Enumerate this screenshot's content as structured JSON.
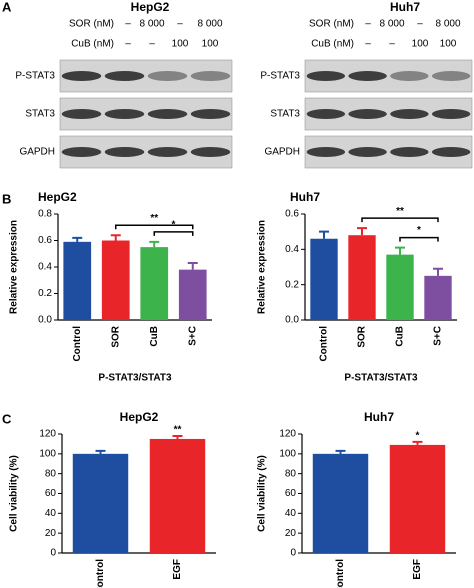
{
  "panel_labels": [
    "A",
    "B",
    "C"
  ],
  "blots": [
    {
      "title": "HepG2",
      "conditions": [
        {
          "label": "SOR (nM)",
          "values": [
            "–",
            "8 000",
            "–",
            "8 000"
          ]
        },
        {
          "label": "CuB (nM)",
          "values": [
            "–",
            "–",
            "100",
            "100"
          ]
        }
      ],
      "bands": [
        "P-STAT3",
        "STAT3",
        "GAPDH"
      ]
    },
    {
      "title": "Huh7",
      "conditions": [
        {
          "label": "SOR (nM)",
          "values": [
            "–",
            "8 000",
            "–",
            "8 000"
          ]
        },
        {
          "label": "CuB (nM)",
          "values": [
            "–",
            "–",
            "100",
            "100"
          ]
        }
      ],
      "bands": [
        "P-STAT3",
        "STAT3",
        "GAPDH"
      ]
    }
  ],
  "chart_data": [
    {
      "type": "bar",
      "title": "HepG2",
      "ylabel": "Relative expression",
      "xlabel": "P-STAT3/STAT3",
      "categories": [
        "Control",
        "SOR",
        "CuB",
        "S+C"
      ],
      "values": [
        0.59,
        0.6,
        0.55,
        0.38
      ],
      "errors": [
        0.03,
        0.04,
        0.04,
        0.05
      ],
      "colors": [
        "#1f4ea0",
        "#e8262a",
        "#3cb44b",
        "#7e4fa0"
      ],
      "ylim": [
        0,
        0.8
      ],
      "yticks": [
        {
          "value": 0,
          "label": "0.0"
        },
        0.2,
        0.4,
        0.6,
        0.8
      ],
      "annotations": [
        {
          "label": "**",
          "from": 1,
          "to": 3
        },
        {
          "label": "*",
          "from": 2,
          "to": 3
        }
      ]
    },
    {
      "type": "bar",
      "title": "Huh7",
      "ylabel": "Relative expression",
      "xlabel": "P-STAT3/STAT3",
      "categories": [
        "Control",
        "SOR",
        "CuB",
        "S+C"
      ],
      "values": [
        0.46,
        0.48,
        0.37,
        0.25
      ],
      "errors": [
        0.04,
        0.04,
        0.04,
        0.04
      ],
      "colors": [
        "#1f4ea0",
        "#e8262a",
        "#3cb44b",
        "#7e4fa0"
      ],
      "ylim": [
        0,
        0.6
      ],
      "yticks": [
        {
          "value": 0,
          "label": "0.0"
        },
        0.2,
        0.4,
        0.6
      ],
      "annotations": [
        {
          "label": "**",
          "from": 1,
          "to": 3
        },
        {
          "label": "*",
          "from": 2,
          "to": 3
        }
      ]
    },
    {
      "type": "bar",
      "title": "HepG2",
      "ylabel": "Cell viability (%)",
      "categories": [
        "Control",
        "EGF"
      ],
      "values": [
        100,
        115
      ],
      "errors": [
        3,
        3
      ],
      "colors": [
        "#1f4ea0",
        "#e8262a"
      ],
      "ylim": [
        0,
        120
      ],
      "yticks": [
        0,
        20,
        40,
        60,
        80,
        100,
        120
      ],
      "annotations": [
        {
          "label": "**",
          "from": 1,
          "to": 1
        }
      ]
    },
    {
      "type": "bar",
      "title": "Huh7",
      "ylabel": "Cell viability (%)",
      "categories": [
        "Control",
        "EGF"
      ],
      "values": [
        100,
        109
      ],
      "errors": [
        3,
        3
      ],
      "colors": [
        "#1f4ea0",
        "#e8262a"
      ],
      "ylim": [
        0,
        120
      ],
      "yticks": [
        0,
        20,
        40,
        60,
        80,
        100,
        120
      ],
      "annotations": [
        {
          "label": "*",
          "from": 1,
          "to": 1
        }
      ]
    }
  ]
}
